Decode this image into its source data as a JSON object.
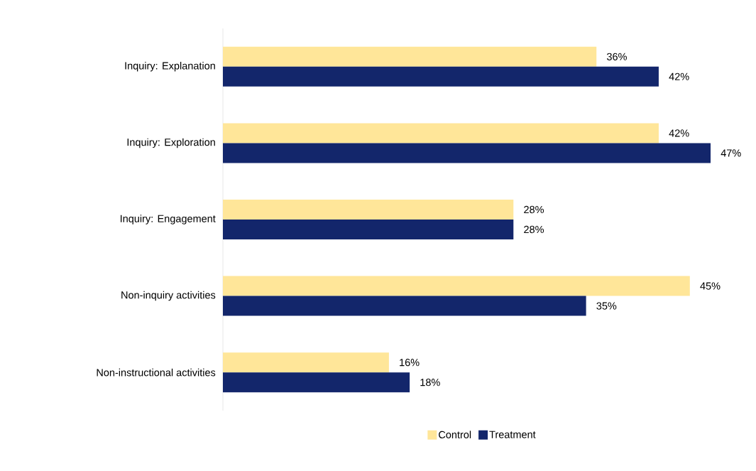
{
  "chart_data": {
    "type": "bar",
    "orientation": "horizontal",
    "categories": [
      "Inquiry: Explanation",
      "Inquiry: Exploration",
      "Inquiry: Engagement",
      "Non-inquiry activities",
      "Non-instructional activities"
    ],
    "series": [
      {
        "name": "Control",
        "color": "#ffe699",
        "values": [
          36,
          42,
          28,
          45,
          16
        ],
        "value_labels": [
          "36%",
          "42%",
          "28%",
          "45%",
          "16%"
        ]
      },
      {
        "name": "Treatment",
        "color": "#13266b",
        "values": [
          42,
          47,
          28,
          35,
          18
        ],
        "value_labels": [
          "42%",
          "47%",
          "28%",
          "35%",
          "18%"
        ]
      }
    ],
    "legend": "bottom",
    "grid": false
  }
}
